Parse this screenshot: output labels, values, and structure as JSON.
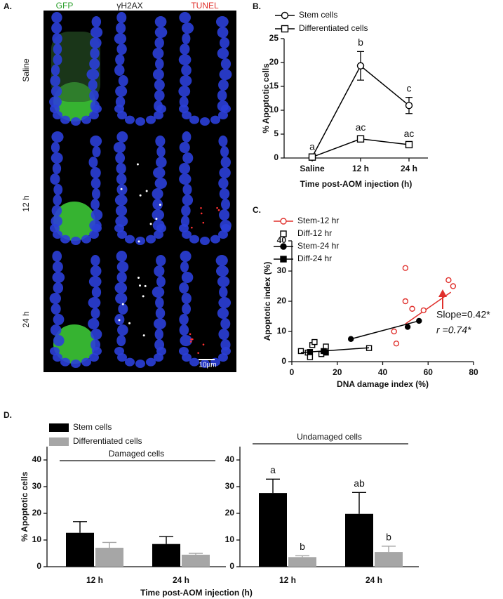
{
  "panel_a": {
    "label": "A.",
    "columns": [
      "GFP",
      "γH2AX",
      "TUNEL"
    ],
    "column_colors": [
      "#2ca02c",
      "#222222",
      "#e0302c"
    ],
    "rows": [
      "Saline",
      "12 h",
      "24 h"
    ],
    "scale_bar": "10µm"
  },
  "chart_data": [
    {
      "type": "line",
      "panel_label": "B.",
      "x_label": "Time post-AOM injection (h)",
      "y_label": "% Apoptotic cells",
      "categories": [
        "Saline",
        "12 h",
        "24 h"
      ],
      "ylim": [
        0,
        25
      ],
      "yticks": [
        0,
        5,
        10,
        15,
        20,
        25
      ],
      "series": [
        {
          "name": "Stem cells",
          "color": "#000000",
          "marker": "circle",
          "values": [
            0.2,
            19.3,
            11
          ],
          "errors": [
            0.3,
            3,
            1.7
          ],
          "labels": [
            "a",
            "b",
            "c"
          ]
        },
        {
          "name": "Differentiated cells",
          "color": "#000000",
          "marker": "square",
          "values": [
            0.2,
            4,
            2.8
          ],
          "errors": [
            0.2,
            0.5,
            0.4
          ],
          "labels": [
            null,
            "ac",
            "ac"
          ]
        }
      ]
    },
    {
      "type": "scatter",
      "panel_label": "C.",
      "x_label": "DNA damage index (%)",
      "y_label": "Apoptotic index (%)",
      "xlim": [
        0,
        80
      ],
      "xticks": [
        0,
        20,
        40,
        60,
        80
      ],
      "ylim": [
        0,
        40
      ],
      "yticks": [
        0,
        10,
        20,
        30,
        40
      ],
      "annotations": [
        "Slope=0.42*",
        "r =0.74*"
      ],
      "series": [
        {
          "name": "Stem-12 hr",
          "color": "#e0302c",
          "marker": "circle",
          "filled": false,
          "x": [
            45,
            46,
            50,
            50,
            53,
            58,
            69,
            71
          ],
          "values": [
            10,
            6,
            31,
            20,
            17.5,
            17,
            27,
            25
          ],
          "fit": {
            "x": [
              50,
              70
            ],
            "y": [
              12.5,
              23
            ]
          }
        },
        {
          "name": "Diff-12 hr",
          "color": "#000000",
          "marker": "square",
          "filled": false,
          "x": [
            4,
            7,
            8,
            9,
            10,
            13,
            15,
            34
          ],
          "values": [
            3.5,
            3,
            1.5,
            5.5,
            6.5,
            2.5,
            5,
            4.5
          ]
        },
        {
          "name": "Stem-24 hr",
          "color": "#000000",
          "marker": "circle",
          "filled": true,
          "x": [
            26,
            51,
            56
          ],
          "values": [
            7.5,
            11.5,
            13.5
          ],
          "fit": {
            "x": [
              26,
              56
            ],
            "y": [
              7.5,
              13.5
            ]
          }
        },
        {
          "name": "Diff-24 hr",
          "color": "#000000",
          "marker": "square",
          "filled": true,
          "x": [
            8,
            14,
            15
          ],
          "values": [
            3.2,
            3.5,
            3
          ],
          "fit": {
            "x": [
              4,
              34
            ],
            "y": [
              3,
              4.6
            ]
          }
        }
      ]
    },
    {
      "type": "bar",
      "panel_label": "D.",
      "x_label": "Time post-AOM injection (h)",
      "y_label": "% Apoptotic cells",
      "ylim": [
        0,
        45
      ],
      "yticks": [
        0,
        10,
        20,
        30,
        40
      ],
      "legend": [
        {
          "name": "Stem cells",
          "color": "#000000"
        },
        {
          "name": "Differentiated cells",
          "color": "#a6a6a6"
        }
      ],
      "subplots": [
        {
          "title": "Damaged cells",
          "categories": [
            "12 h",
            "24 h"
          ],
          "series": [
            {
              "values": [
                12.7,
                8.5
              ],
              "errors": [
                4.2,
                2.8
              ],
              "labels": [
                null,
                null
              ]
            },
            {
              "values": [
                7.1,
                4.5
              ],
              "errors": [
                2,
                0.5
              ],
              "labels": [
                null,
                null
              ]
            }
          ]
        },
        {
          "title": "Undamaged cells",
          "categories": [
            "12 h",
            "24 h"
          ],
          "series": [
            {
              "values": [
                27.6,
                19.8
              ],
              "errors": [
                5.2,
                8
              ],
              "labels": [
                "a",
                "ab"
              ]
            },
            {
              "values": [
                3.6,
                5.5
              ],
              "errors": [
                0.5,
                2.2
              ],
              "labels": [
                "b",
                "b"
              ]
            }
          ]
        }
      ]
    }
  ]
}
